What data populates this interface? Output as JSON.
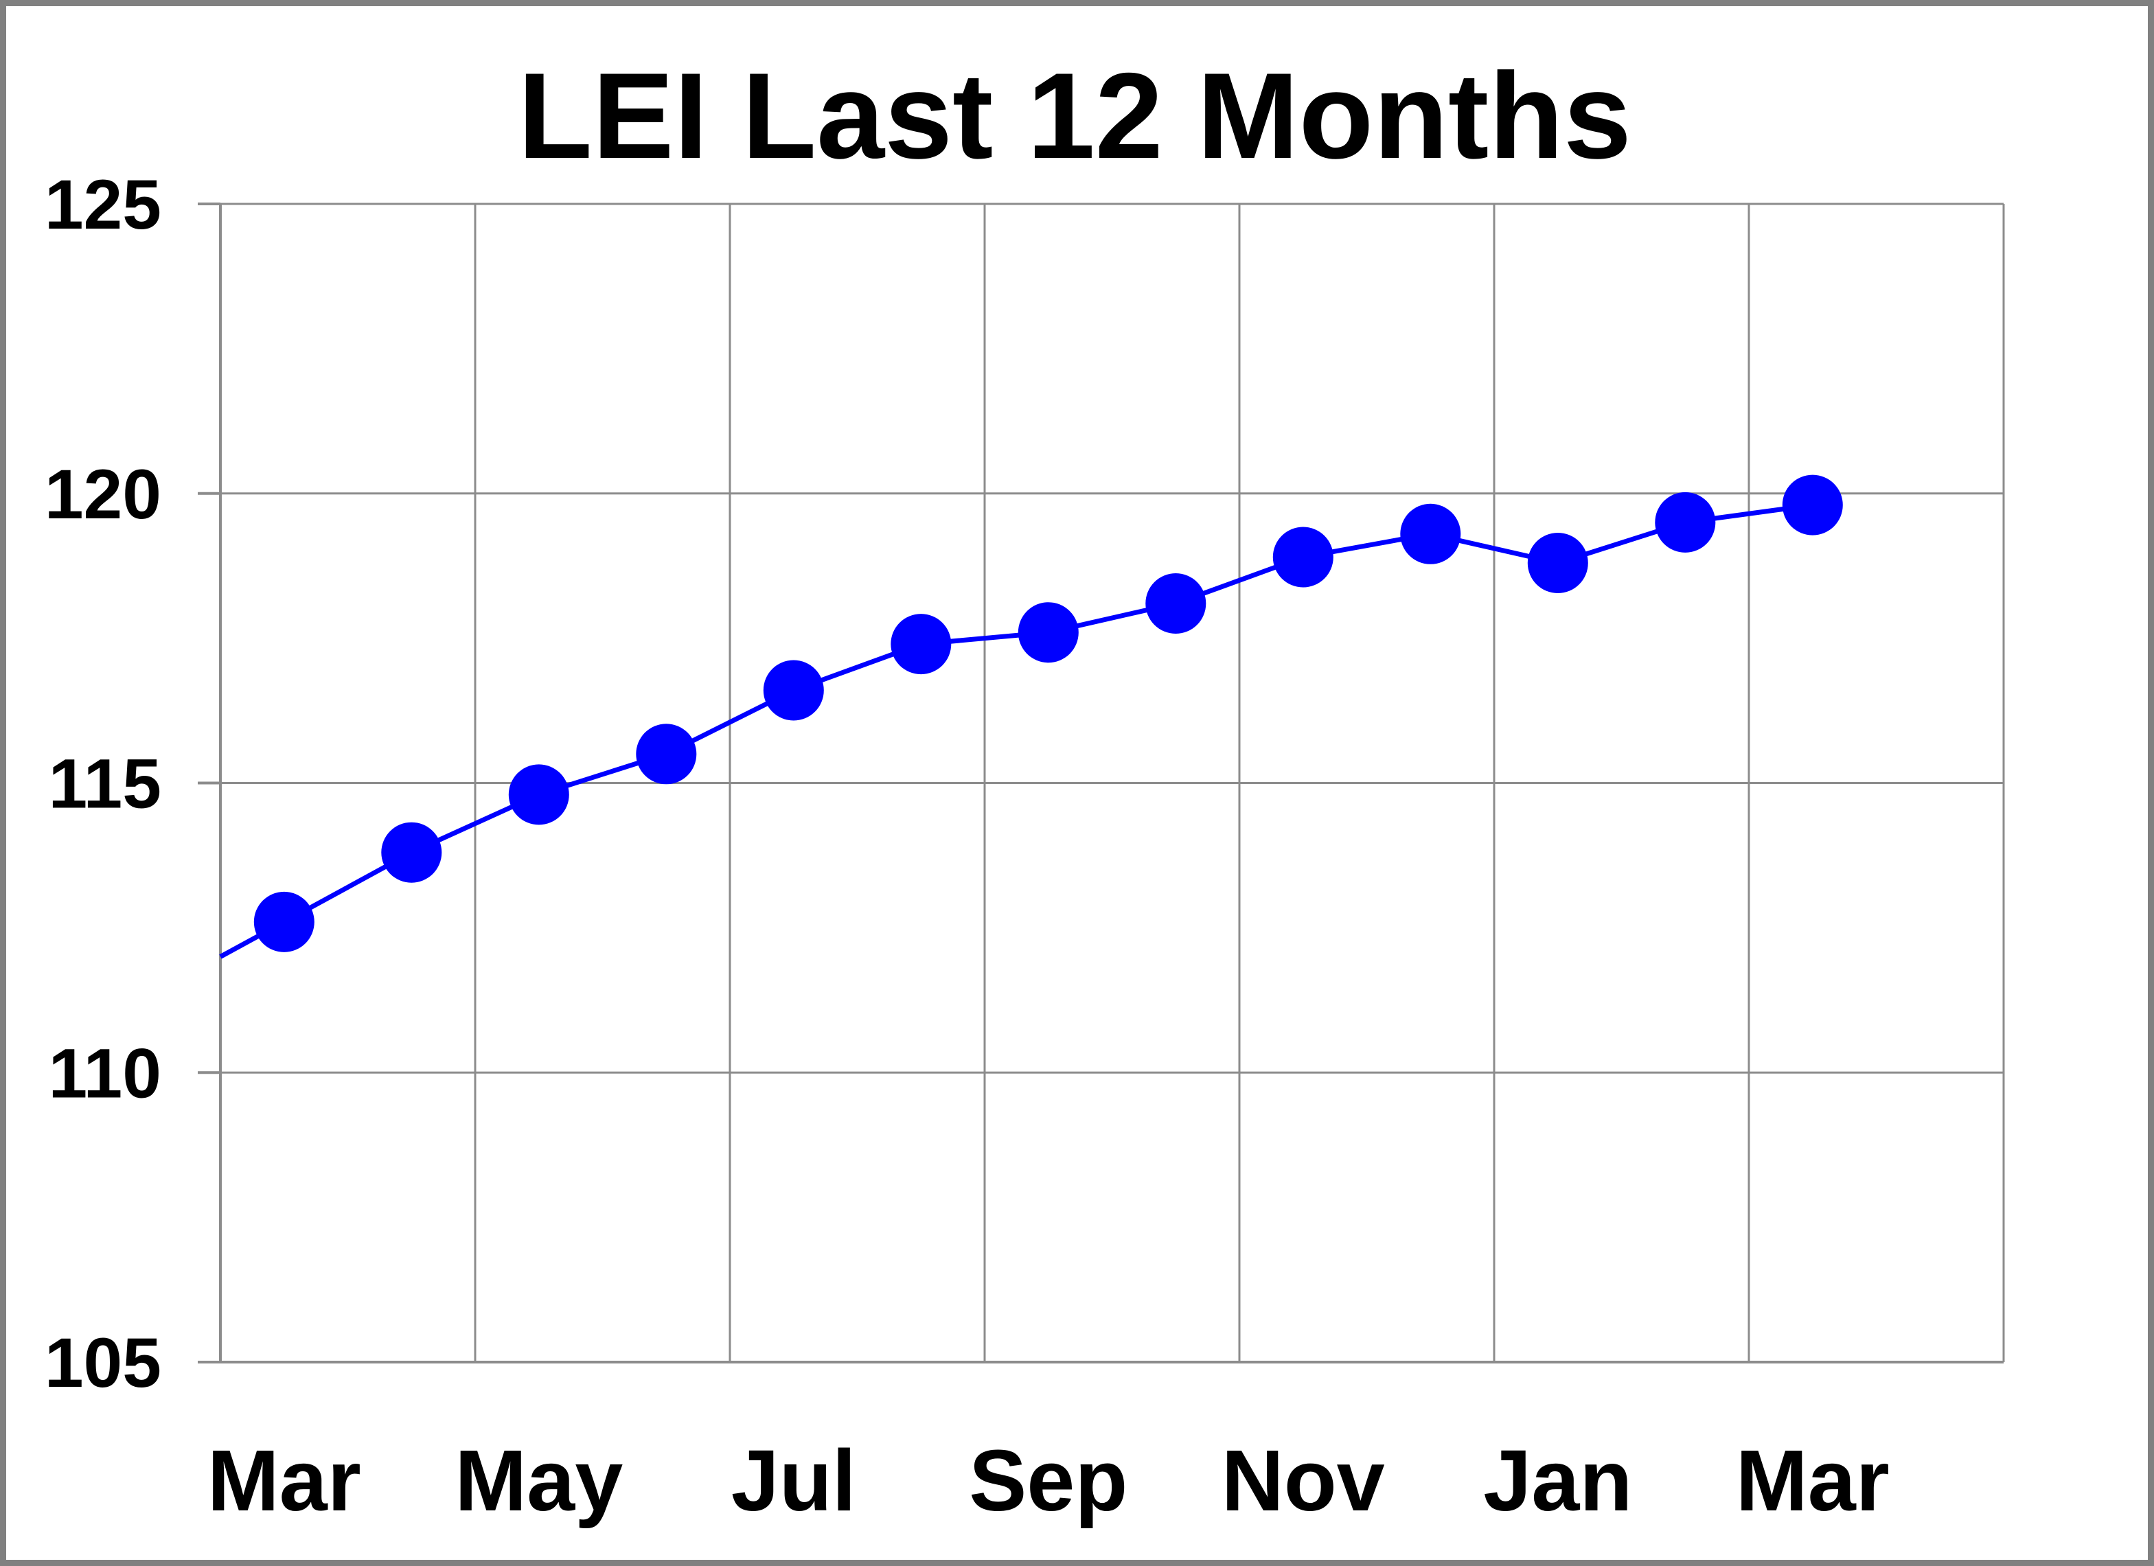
{
  "chart_data": {
    "type": "line",
    "title": "LEI Last 12 Months",
    "series": [
      {
        "name": "LEI",
        "values": [
          112.6,
          113.8,
          114.8,
          115.5,
          116.6,
          117.4,
          117.6,
          118.1,
          118.9,
          119.3,
          118.8,
          119.5,
          119.8
        ]
      }
    ],
    "n_points": 13,
    "x_tick_labels": [
      "Mar",
      "May",
      "Jul",
      "Sep",
      "Nov",
      "Jan",
      "Mar"
    ],
    "x_tick_point_indices": [
      0,
      2,
      4,
      6,
      8,
      10,
      12
    ],
    "y_ticks": [
      125,
      120,
      115,
      110,
      105
    ],
    "ylim": [
      105,
      125
    ],
    "x_slot_count": 14,
    "line_enters_from_left_axis_at_value": 112.0,
    "grid": true,
    "legend_position": "none",
    "marker_style": "filled-circle",
    "colors": {
      "line": "#0000ff",
      "marker": "#0000ff",
      "gridline": "#8c8c8c",
      "axis": "#8c8c8c",
      "tick": "#8c8c8c",
      "text": "#000000",
      "background": "#ffffff",
      "border": "#808080"
    }
  }
}
